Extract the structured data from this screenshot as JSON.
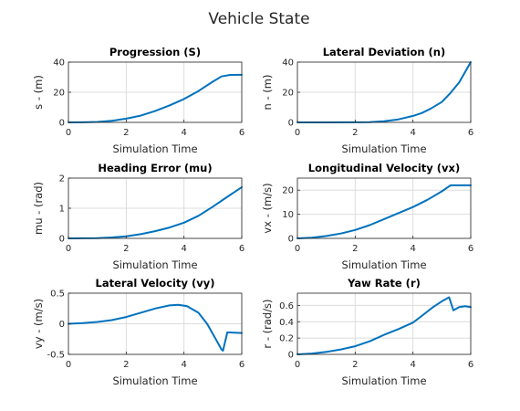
{
  "figure": {
    "title": "Vehicle State"
  },
  "style": {
    "line_color": "#0072BD",
    "background": "#ffffff"
  },
  "chart_data": [
    {
      "type": "line",
      "title": "Progression (S)",
      "xlabel": "Simulation Time",
      "ylabel": "s - (m)",
      "xlim": [
        0,
        6
      ],
      "ylim": [
        0,
        40
      ],
      "xticks": [
        0,
        2,
        4,
        6
      ],
      "yticks": [
        0,
        20,
        40
      ],
      "grid": true,
      "series": [
        {
          "x": [
            0,
            0.5,
            1,
            1.5,
            2,
            2.5,
            3,
            3.5,
            4,
            4.5,
            5,
            5.3,
            5.6,
            6
          ],
          "y": [
            0,
            0.05,
            0.3,
            1,
            2.5,
            4.5,
            7.5,
            11.3,
            15.5,
            20.8,
            27,
            30.5,
            31.5,
            31.6
          ]
        }
      ]
    },
    {
      "type": "line",
      "title": "Lateral Deviation (n)",
      "xlabel": "Simulation Time",
      "ylabel": "n - (m)",
      "xlim": [
        0,
        6
      ],
      "ylim": [
        0,
        40
      ],
      "xticks": [
        0,
        2,
        4,
        6
      ],
      "yticks": [
        0,
        20,
        40
      ],
      "grid": true,
      "series": [
        {
          "x": [
            0,
            1,
            2,
            2.5,
            3,
            3.5,
            4,
            4.3,
            4.6,
            5,
            5.3,
            5.6,
            6
          ],
          "y": [
            0,
            0,
            0.05,
            0.2,
            0.7,
            2,
            4.3,
            6.2,
            9,
            13.5,
            19.5,
            26.5,
            40
          ]
        }
      ]
    },
    {
      "type": "line",
      "title": "Heading Error (mu)",
      "xlabel": "Simulation Time",
      "ylabel": "mu - (rad)",
      "xlim": [
        0,
        6
      ],
      "ylim": [
        0,
        2
      ],
      "xticks": [
        0,
        2,
        4,
        6
      ],
      "yticks": [
        0,
        1,
        2
      ],
      "grid": true,
      "series": [
        {
          "x": [
            0,
            1,
            1.5,
            2,
            2.5,
            3,
            3.5,
            4,
            4.5,
            5,
            5.5,
            6
          ],
          "y": [
            0,
            0.01,
            0.03,
            0.07,
            0.14,
            0.24,
            0.36,
            0.52,
            0.75,
            1.05,
            1.38,
            1.7
          ]
        }
      ]
    },
    {
      "type": "line",
      "title": "Longitudinal Velocity (vx)",
      "xlabel": "Simulation Time",
      "ylabel": "vx - (m/s)",
      "xlim": [
        0,
        6
      ],
      "ylim": [
        0,
        25
      ],
      "xticks": [
        0,
        2,
        4,
        6
      ],
      "yticks": [
        0,
        10,
        20
      ],
      "grid": true,
      "series": [
        {
          "x": [
            0,
            0.5,
            1,
            1.5,
            2,
            2.5,
            3,
            3.5,
            4,
            4.5,
            5,
            5.3,
            5.6,
            6
          ],
          "y": [
            0,
            0.3,
            1,
            2,
            3.5,
            5.5,
            8,
            10.5,
            13,
            16,
            19.5,
            22,
            22,
            22
          ]
        }
      ]
    },
    {
      "type": "line",
      "title": "Lateral Velocity (vy)",
      "xlabel": "Simulation Time",
      "ylabel": "vy - (m/s)",
      "xlim": [
        0,
        6
      ],
      "ylim": [
        -0.5,
        0.5
      ],
      "xticks": [
        0,
        2,
        4,
        6
      ],
      "yticks": [
        -0.5,
        0,
        0.5
      ],
      "grid": true,
      "series": [
        {
          "x": [
            0,
            0.5,
            1,
            1.5,
            2,
            2.5,
            3,
            3.5,
            3.8,
            4.1,
            4.5,
            4.8,
            5.1,
            5.3,
            5.35,
            5.5,
            6
          ],
          "y": [
            0,
            0.01,
            0.03,
            0.06,
            0.11,
            0.18,
            0.25,
            0.3,
            0.31,
            0.29,
            0.18,
            0.0,
            -0.25,
            -0.42,
            -0.44,
            -0.14,
            -0.15
          ]
        }
      ]
    },
    {
      "type": "line",
      "title": "Yaw Rate (r)",
      "xlabel": "Simulation Time",
      "ylabel": "r - (rad/s)",
      "xlim": [
        0,
        6
      ],
      "ylim": [
        0,
        0.75
      ],
      "xticks": [
        0,
        2,
        4,
        6
      ],
      "yticks": [
        0,
        0.2,
        0.4,
        0.6
      ],
      "grid": true,
      "series": [
        {
          "x": [
            0,
            0.5,
            1,
            1.5,
            2,
            2.5,
            3,
            3.5,
            4,
            4.3,
            4.7,
            5,
            5.25,
            5.4,
            5.6,
            5.8,
            6
          ],
          "y": [
            0,
            0.01,
            0.03,
            0.06,
            0.1,
            0.16,
            0.24,
            0.31,
            0.39,
            0.47,
            0.58,
            0.65,
            0.7,
            0.54,
            0.58,
            0.59,
            0.58
          ]
        }
      ]
    }
  ]
}
